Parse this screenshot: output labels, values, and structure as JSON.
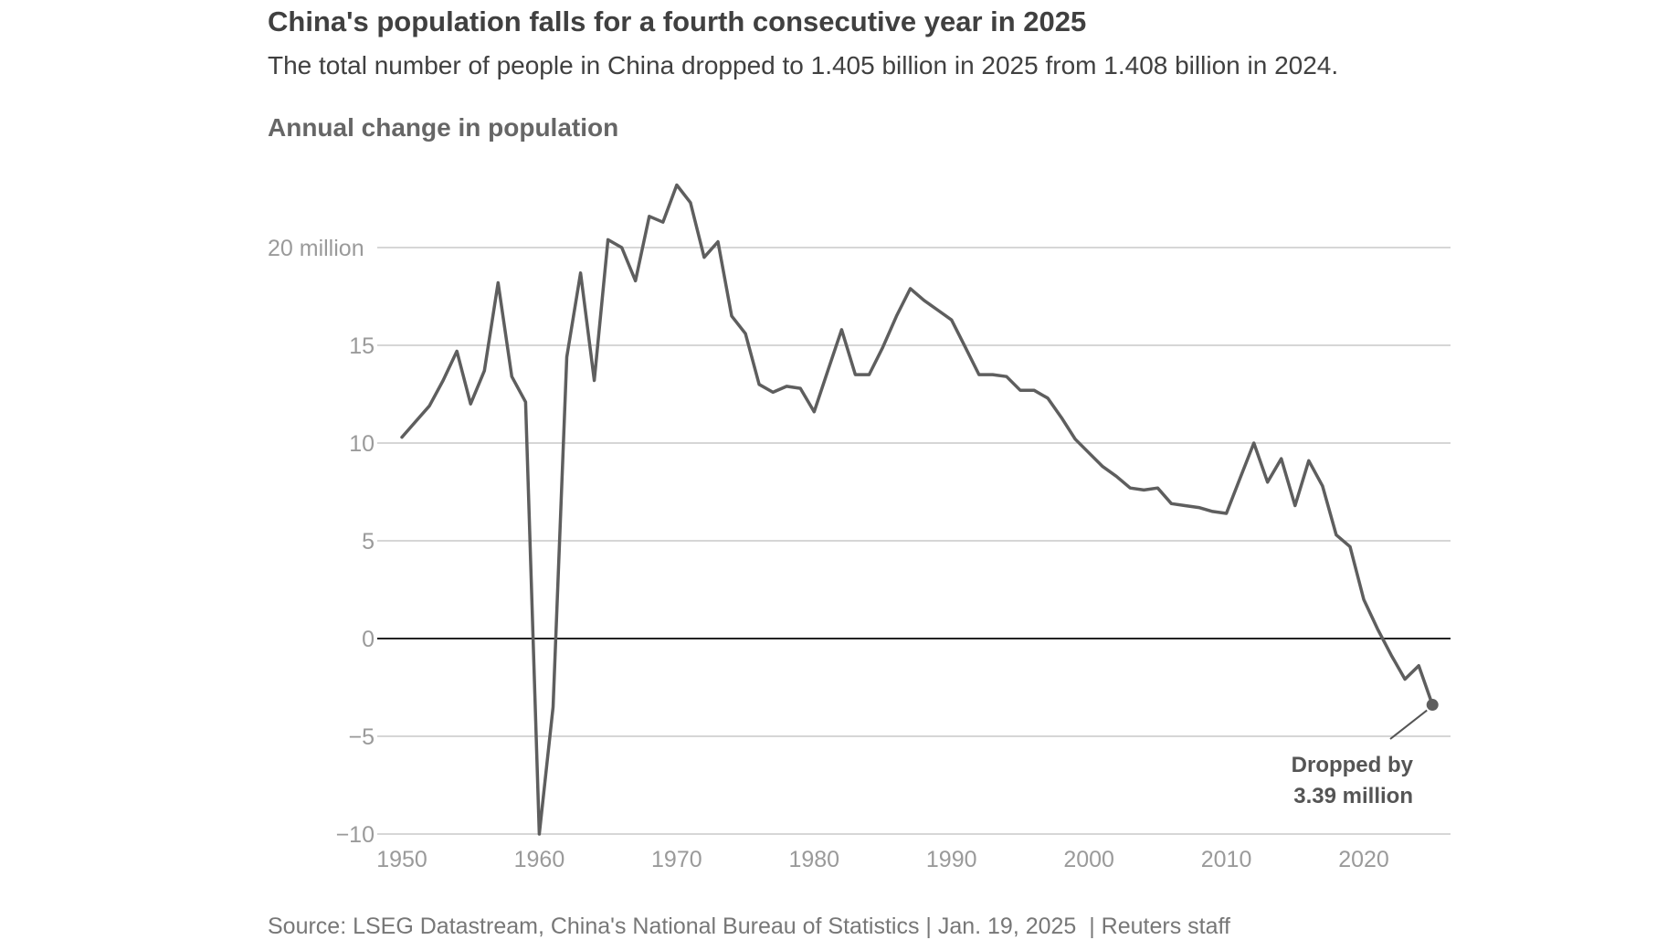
{
  "title": "China's population falls for a fourth consecutive year in 2025",
  "subtitle": "The total number of people in China dropped to 1.405 billion in 2025 from 1.408 billion in 2024.",
  "panel_label": "Annual change in population",
  "source": "Source: LSEG Datastream, China's National Bureau of Statistics | Jan. 19, 2025  | Reuters staff",
  "colors": {
    "line": "#5e5e5e",
    "grid": "#c8c8c8",
    "zero": "#222222",
    "tick": "#9a9a9a"
  },
  "chart_data": {
    "type": "line",
    "title": "Annual change in population",
    "xlabel": "",
    "ylabel": "",
    "ylim": [
      -10,
      25
    ],
    "xlim": [
      1949,
      2026
    ],
    "y_ticks": [
      20,
      15,
      10,
      5,
      0,
      -5,
      -10
    ],
    "y_tick_labels": [
      "20 million",
      "15",
      "10",
      "5",
      "0",
      "−5",
      "−10"
    ],
    "x_ticks": [
      1950,
      1960,
      1970,
      1980,
      1990,
      2000,
      2010,
      2020
    ],
    "x_tick_labels": [
      "1950",
      "1960",
      "1970",
      "1980",
      "1990",
      "2000",
      "2010",
      "2020"
    ],
    "series": [
      {
        "name": "Annual change in population (millions)",
        "x": [
          1950,
          1951,
          1952,
          1953,
          1954,
          1955,
          1956,
          1957,
          1958,
          1959,
          1960,
          1961,
          1962,
          1963,
          1964,
          1965,
          1966,
          1967,
          1968,
          1969,
          1970,
          1971,
          1972,
          1973,
          1974,
          1975,
          1976,
          1977,
          1978,
          1979,
          1980,
          1981,
          1982,
          1983,
          1984,
          1985,
          1986,
          1987,
          1988,
          1989,
          1990,
          1991,
          1992,
          1993,
          1994,
          1995,
          1996,
          1997,
          1998,
          1999,
          2000,
          2001,
          2002,
          2003,
          2004,
          2005,
          2006,
          2007,
          2008,
          2009,
          2010,
          2011,
          2012,
          2013,
          2014,
          2015,
          2016,
          2017,
          2018,
          2019,
          2020,
          2021,
          2022,
          2023,
          2024,
          2025
        ],
        "values": [
          10.3,
          11.1,
          11.9,
          13.2,
          14.7,
          12.0,
          13.7,
          18.2,
          13.4,
          12.1,
          -10.0,
          -3.5,
          14.4,
          18.7,
          13.2,
          20.4,
          20.0,
          18.3,
          21.6,
          21.3,
          23.2,
          22.3,
          19.5,
          20.3,
          16.5,
          15.6,
          13.0,
          12.6,
          12.9,
          12.8,
          11.6,
          13.7,
          15.8,
          13.5,
          13.5,
          14.9,
          16.5,
          17.9,
          17.3,
          16.8,
          16.3,
          14.9,
          13.5,
          13.5,
          13.4,
          12.7,
          12.7,
          12.3,
          11.3,
          10.2,
          9.5,
          8.8,
          8.3,
          7.7,
          7.6,
          7.7,
          6.9,
          6.8,
          6.7,
          6.5,
          6.4,
          8.2,
          10.0,
          8.0,
          9.2,
          6.8,
          9.1,
          7.8,
          5.3,
          4.7,
          2.0,
          0.5,
          -0.85,
          -2.08,
          -1.39,
          -3.39
        ]
      }
    ],
    "annotation": {
      "line1": "Dropped by",
      "line2": "3.39 million",
      "year": 2025,
      "value": -3.39
    }
  }
}
